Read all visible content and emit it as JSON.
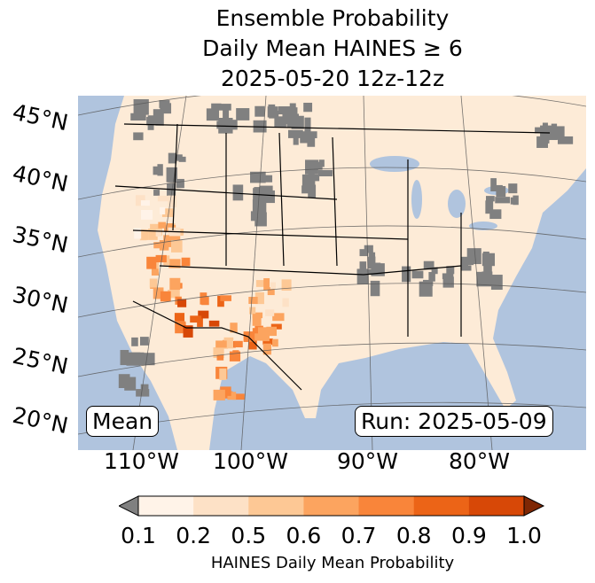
{
  "title": [
    "Ensemble Probability",
    "Daily Mean HAINES ≥ 6",
    "2025-05-20 12z-12z"
  ],
  "lat_labels": [
    "45°N",
    "40°N",
    "35°N",
    "30°N",
    "25°N",
    "20°N"
  ],
  "lon_labels": [
    "110°W",
    "100°W",
    "90°W",
    "80°W"
  ],
  "mean_label": "Mean",
  "run_label": "Run: 2025-05-09",
  "colorbar": {
    "ticks": [
      "0.1",
      "0.2",
      "0.5",
      "0.6",
      "0.7",
      "0.8",
      "0.9",
      "1.0"
    ],
    "colors": [
      "#fff3e8",
      "#fde1c6",
      "#fdc895",
      "#fca45f",
      "#f9853a",
      "#ec6417",
      "#d74807"
    ],
    "under_color": "#808080",
    "over_color": "#7f2704",
    "label": "HAINES Daily Mean Probability"
  },
  "colors": {
    "ocean": "#b0c4de",
    "land": "#fdebd7",
    "nodata": "#808080"
  }
}
